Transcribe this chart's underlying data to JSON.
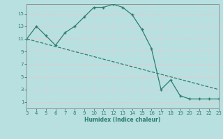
{
  "x_curve": [
    3,
    4,
    5,
    6,
    7,
    8,
    9,
    10,
    11,
    12,
    13,
    14,
    15,
    16,
    17,
    18,
    19,
    20,
    21,
    22,
    23
  ],
  "y_curve": [
    11,
    13,
    11.5,
    10,
    12,
    13,
    14.5,
    16,
    16,
    16.5,
    16,
    14.8,
    12.5,
    9.5,
    3,
    4.5,
    2,
    1.5,
    1.5,
    1.5,
    1.5
  ],
  "x_line": [
    3,
    4,
    5,
    6,
    7,
    8,
    9,
    10,
    11,
    12,
    13,
    14,
    15,
    16,
    17,
    18,
    19,
    20,
    21,
    22,
    23
  ],
  "y_line": [
    11,
    10.6,
    10.2,
    9.8,
    9.4,
    9.0,
    8.6,
    8.2,
    7.8,
    7.4,
    7.0,
    6.6,
    6.2,
    5.8,
    5.4,
    5.0,
    4.6,
    4.2,
    3.8,
    3.4,
    3.0
  ],
  "line_color": "#2e7d6e",
  "bg_color": "#b8e0e0",
  "grid_color_major": "#e8c8c8",
  "grid_color_minor": "#d8e8e8",
  "xlabel": "Humidex (Indice chaleur)",
  "xlim": [
    3,
    23
  ],
  "ylim": [
    0,
    16.5
  ],
  "yticks": [
    1,
    3,
    5,
    7,
    9,
    11,
    13,
    15
  ],
  "xticks": [
    3,
    4,
    5,
    6,
    7,
    8,
    9,
    10,
    11,
    12,
    13,
    14,
    15,
    16,
    17,
    18,
    19,
    20,
    21,
    22,
    23
  ]
}
